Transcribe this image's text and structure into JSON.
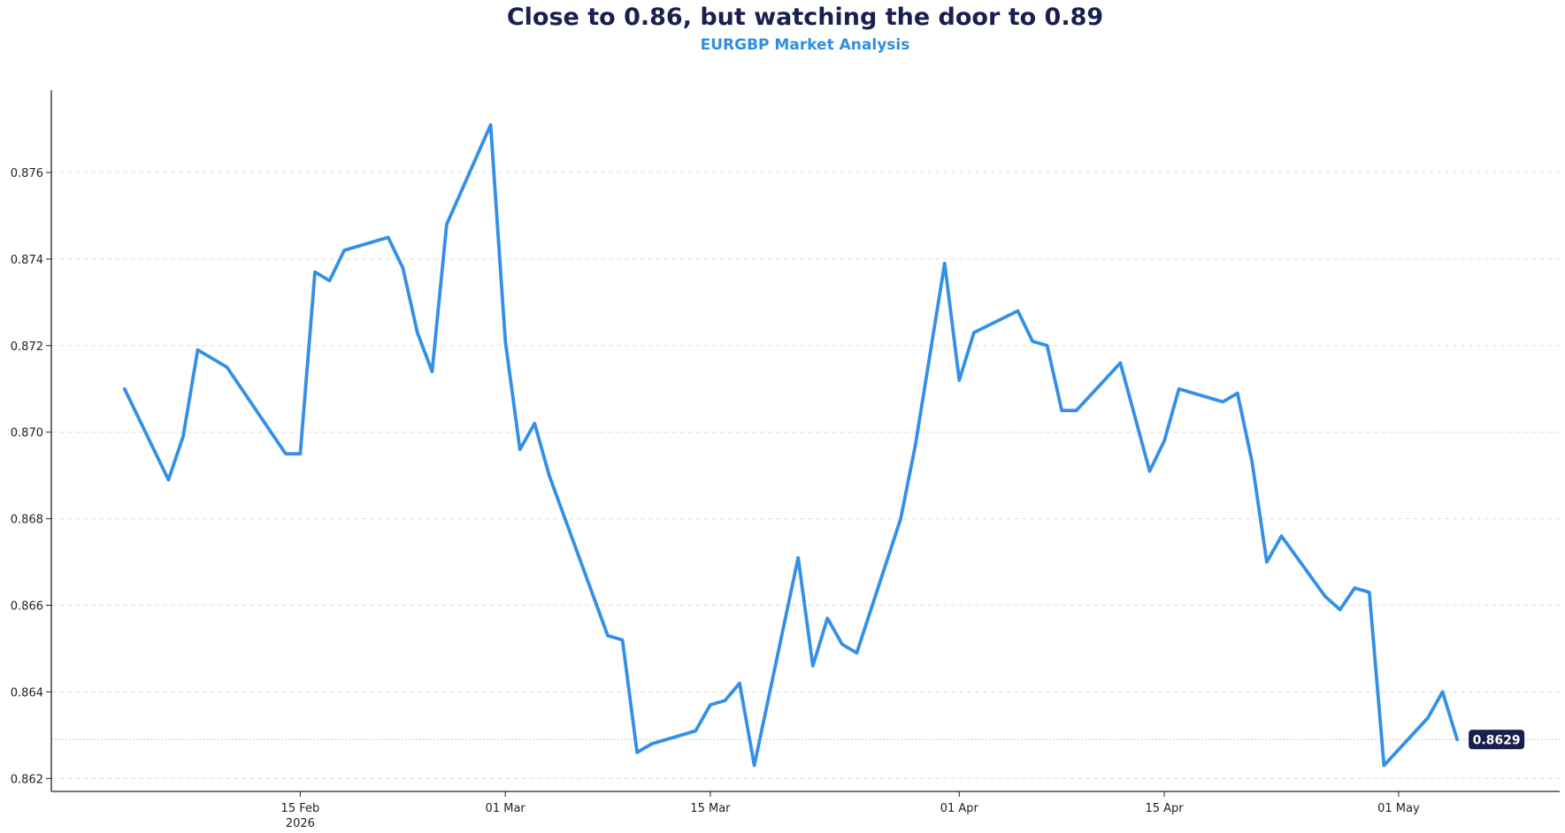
{
  "chart_data": {
    "type": "line",
    "title": "Close to 0.86, but watching the door to 0.89",
    "subtitle": "EURGBP Market Analysis",
    "xlabel": "",
    "ylabel": "",
    "colors": {
      "line": "#3390e6",
      "title": "#1b1f4d",
      "subtitle": "#2e8ee0",
      "badge_bg": "#1b1f4d",
      "grid": "#dddddd"
    },
    "grid": "horizontal dashed",
    "ylim": [
      0.8617,
      0.8779
    ],
    "xlim": [
      "2026-01-29",
      "2026-05-12"
    ],
    "yticks": [
      "0.862",
      "0.864",
      "0.866",
      "0.868",
      "0.870",
      "0.872",
      "0.874",
      "0.876"
    ],
    "xticks": [
      {
        "date": "2026-02-15",
        "label": "15 Feb",
        "sublabel": "2026"
      },
      {
        "date": "2026-03-01",
        "label": "01 Mar"
      },
      {
        "date": "2026-03-15",
        "label": "15 Mar"
      },
      {
        "date": "2026-04-01",
        "label": "01 Apr"
      },
      {
        "date": "2026-04-15",
        "label": "15 Apr"
      },
      {
        "date": "2026-05-01",
        "label": "01 May"
      }
    ],
    "last_value_label": "0.8629",
    "last_value_reference": 0.8629,
    "series": [
      {
        "points": [
          [
            "2026-02-03",
            0.871
          ],
          [
            "2026-02-06",
            0.8689
          ],
          [
            "2026-02-07",
            0.8699
          ],
          [
            "2026-02-08",
            0.8719
          ],
          [
            "2026-02-09",
            0.8717
          ],
          [
            "2026-02-10",
            0.8715
          ],
          [
            "2026-02-14",
            0.8695
          ],
          [
            "2026-02-15",
            0.8695
          ],
          [
            "2026-02-16",
            0.8737
          ],
          [
            "2026-02-17",
            0.8735
          ],
          [
            "2026-02-18",
            0.8742
          ],
          [
            "2026-02-21",
            0.8745
          ],
          [
            "2026-02-22",
            0.8738
          ],
          [
            "2026-02-23",
            0.8723
          ],
          [
            "2026-02-24",
            0.8714
          ],
          [
            "2026-02-25",
            0.8748
          ],
          [
            "2026-02-28",
            0.8771
          ],
          [
            "2026-03-01",
            0.8721
          ],
          [
            "2026-03-02",
            0.8696
          ],
          [
            "2026-03-03",
            0.8702
          ],
          [
            "2026-03-04",
            0.869
          ],
          [
            "2026-03-08",
            0.8653
          ],
          [
            "2026-03-09",
            0.8652
          ],
          [
            "2026-03-10",
            0.8626
          ],
          [
            "2026-03-11",
            0.8628
          ],
          [
            "2026-03-14",
            0.8631
          ],
          [
            "2026-03-15",
            0.8637
          ],
          [
            "2026-03-16",
            0.8638
          ],
          [
            "2026-03-17",
            0.8642
          ],
          [
            "2026-03-18",
            0.8623
          ],
          [
            "2026-03-21",
            0.8671
          ],
          [
            "2026-03-22",
            0.8646
          ],
          [
            "2026-03-23",
            0.8657
          ],
          [
            "2026-03-24",
            0.8651
          ],
          [
            "2026-03-25",
            0.8649
          ],
          [
            "2026-03-28",
            0.868
          ],
          [
            "2026-03-29",
            0.8697
          ],
          [
            "2026-03-31",
            0.8739
          ],
          [
            "2026-04-01",
            0.8712
          ],
          [
            "2026-04-02",
            0.8723
          ],
          [
            "2026-04-05",
            0.8728
          ],
          [
            "2026-04-06",
            0.8721
          ],
          [
            "2026-04-07",
            0.872
          ],
          [
            "2026-04-08",
            0.8705
          ],
          [
            "2026-04-09",
            0.8705
          ],
          [
            "2026-04-12",
            0.8716
          ],
          [
            "2026-04-14",
            0.8691
          ],
          [
            "2026-04-15",
            0.8698
          ],
          [
            "2026-04-16",
            0.871
          ],
          [
            "2026-04-19",
            0.8707
          ],
          [
            "2026-04-20",
            0.8709
          ],
          [
            "2026-04-21",
            0.8693
          ],
          [
            "2026-04-22",
            0.867
          ],
          [
            "2026-04-23",
            0.8676
          ],
          [
            "2026-04-26",
            0.8662
          ],
          [
            "2026-04-27",
            0.8659
          ],
          [
            "2026-04-28",
            0.8664
          ],
          [
            "2026-04-29",
            0.8663
          ],
          [
            "2026-04-30",
            0.8623
          ],
          [
            "2026-05-03",
            0.8634
          ],
          [
            "2026-05-04",
            0.864
          ],
          [
            "2026-05-05",
            0.8629
          ]
        ]
      }
    ]
  }
}
